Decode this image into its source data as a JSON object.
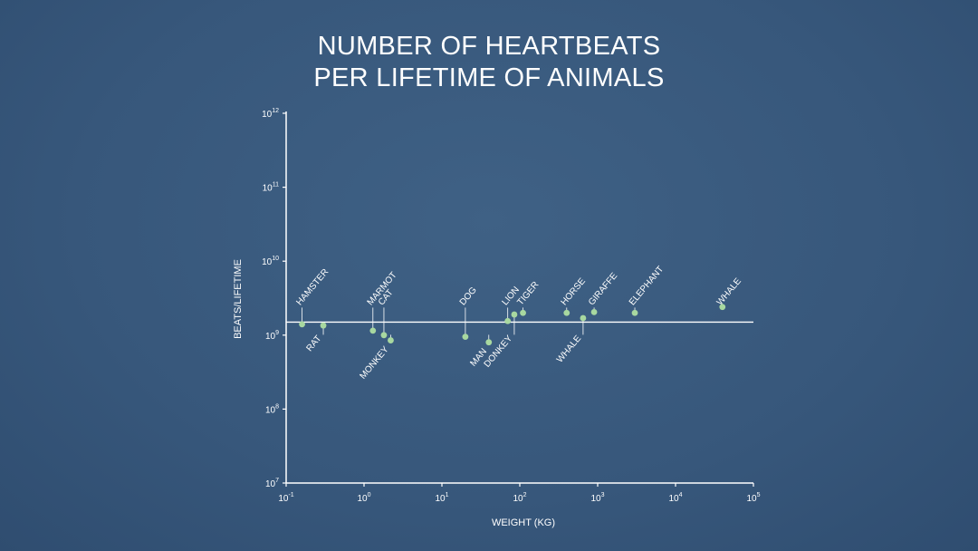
{
  "colors": {
    "background": "#3a5a7e",
    "axis": "#ffffff",
    "point": "#a8d8a0",
    "text": "#ffffff"
  },
  "chart_data": {
    "type": "scatter",
    "title_lines": [
      "NUMBER OF HEARTBEATS",
      "PER LIFETIME OF ANIMALS"
    ],
    "xlabel": "WEIGHT (KG)",
    "ylabel": "BEATS/LIFETIME",
    "x_scale": "log",
    "y_scale": "log",
    "xlim": [
      0.1,
      100000
    ],
    "ylim": [
      10000000,
      1000000000000
    ],
    "x_ticks": [
      {
        "base": "10",
        "exp": "-1",
        "value": 0.1
      },
      {
        "base": "10",
        "exp": "0",
        "value": 1
      },
      {
        "base": "10",
        "exp": "1",
        "value": 10
      },
      {
        "base": "10",
        "exp": "2",
        "value": 100
      },
      {
        "base": "10",
        "exp": "3",
        "value": 1000
      },
      {
        "base": "10",
        "exp": "4",
        "value": 10000
      },
      {
        "base": "10",
        "exp": "5",
        "value": 100000
      }
    ],
    "y_ticks": [
      {
        "base": "10",
        "exp": "7",
        "value": 10000000
      },
      {
        "base": "10",
        "exp": "8",
        "value": 100000000
      },
      {
        "base": "10",
        "exp": "9",
        "value": 1000000000
      },
      {
        "base": "10",
        "exp": "10",
        "value": 10000000000
      },
      {
        "base": "10",
        "exp": "11",
        "value": 100000000000
      },
      {
        "base": "10",
        "exp": "12",
        "value": 1000000000000
      }
    ],
    "reference_line_y": 1500000000,
    "grid": false,
    "points": [
      {
        "label": "HAMSTER",
        "x": 0.16,
        "y": 1400000000,
        "side": "above"
      },
      {
        "label": "RAT",
        "x": 0.3,
        "y": 1350000000,
        "side": "below"
      },
      {
        "label": "MARMOT",
        "x": 1.3,
        "y": 1150000000,
        "side": "above"
      },
      {
        "label": "CAT",
        "x": 1.8,
        "y": 1000000000,
        "side": "above"
      },
      {
        "label": "MONKEY",
        "x": 2.2,
        "y": 850000000,
        "side": "below"
      },
      {
        "label": "DOG",
        "x": 20,
        "y": 950000000,
        "side": "above"
      },
      {
        "label": "MAN",
        "x": 40,
        "y": 800000000,
        "side": "below"
      },
      {
        "label": "LION",
        "x": 70,
        "y": 1550000000,
        "side": "above"
      },
      {
        "label": "DONKEY",
        "x": 85,
        "y": 1900000000,
        "side": "below"
      },
      {
        "label": "TIGER",
        "x": 110,
        "y": 2000000000,
        "side": "above"
      },
      {
        "label": "HORSE",
        "x": 400,
        "y": 2000000000,
        "side": "above"
      },
      {
        "label": "WHALE",
        "x": 650,
        "y": 1700000000,
        "side": "below"
      },
      {
        "label": "GIRAFFE",
        "x": 900,
        "y": 2050000000,
        "side": "above"
      },
      {
        "label": "ELEPHANT",
        "x": 3000,
        "y": 2000000000,
        "side": "above"
      },
      {
        "label": "WHALE",
        "x": 40000,
        "y": 2400000000,
        "side": "above"
      }
    ]
  }
}
